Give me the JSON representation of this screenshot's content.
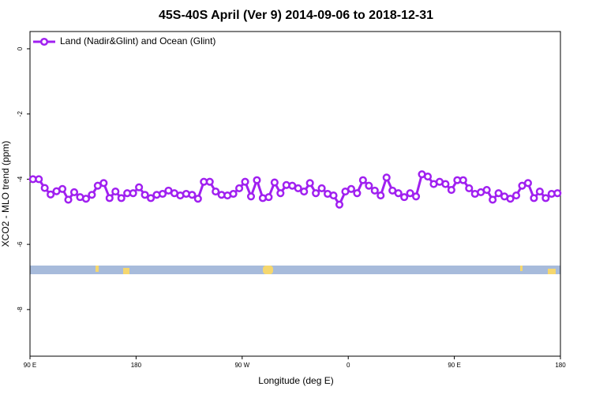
{
  "chart_data": {
    "type": "line",
    "title": "45S-40S April (Ver 9)   2014-09-06 to 2018-12-31",
    "xlabel": "Longitude (deg E)",
    "ylabel": "XCO2 - MLO trend (ppm)",
    "x": [
      92.5,
      97.5,
      102.5,
      107.5,
      112.5,
      117.5,
      122.5,
      127.5,
      132.5,
      137.5,
      142.5,
      147.5,
      152.5,
      157.5,
      162.5,
      167.5,
      172.5,
      177.5,
      182.5,
      187.5,
      192.5,
      197.5,
      202.5,
      207.5,
      212.5,
      217.5,
      222.5,
      227.5,
      232.5,
      237.5,
      242.5,
      247.5,
      252.5,
      257.5,
      262.5,
      267.5,
      272.5,
      277.5,
      282.5,
      287.5,
      292.5,
      297.5,
      302.5,
      307.5,
      312.5,
      317.5,
      322.5,
      327.5,
      332.5,
      337.5,
      342.5,
      347.5,
      352.5,
      357.5,
      362.5,
      367.5,
      372.5,
      377.5,
      382.5,
      387.5,
      392.5,
      397.5,
      402.5,
      407.5,
      412.5,
      417.5,
      422.5,
      427.5,
      432.5,
      437.5,
      442.5,
      447.5,
      452.5,
      457.5,
      462.5,
      467.5,
      472.5,
      477.5,
      482.5,
      487.5,
      492.5,
      497.5,
      502.5,
      507.5,
      512.5,
      517.5,
      522.5,
      527.5,
      532.5,
      537.5
    ],
    "series": [
      {
        "name": "Land (Nadir&Glint) and Ocean (Glint)",
        "color": "#a020f0",
        "values": [
          -4.0,
          -4.0,
          -4.27,
          -4.47,
          -4.37,
          -4.3,
          -4.63,
          -4.4,
          -4.55,
          -4.6,
          -4.48,
          -4.2,
          -4.12,
          -4.58,
          -4.38,
          -4.58,
          -4.43,
          -4.43,
          -4.25,
          -4.48,
          -4.58,
          -4.48,
          -4.45,
          -4.35,
          -4.43,
          -4.5,
          -4.45,
          -4.48,
          -4.6,
          -4.08,
          -4.08,
          -4.38,
          -4.48,
          -4.5,
          -4.45,
          -4.28,
          -4.08,
          -4.53,
          -4.03,
          -4.58,
          -4.55,
          -4.1,
          -4.43,
          -4.18,
          -4.2,
          -4.28,
          -4.38,
          -4.12,
          -4.43,
          -4.28,
          -4.45,
          -4.5,
          -4.78,
          -4.38,
          -4.3,
          -4.43,
          -4.03,
          -4.2,
          -4.35,
          -4.5,
          -3.95,
          -4.35,
          -4.43,
          -4.55,
          -4.43,
          -4.53,
          -3.85,
          -3.92,
          -4.15,
          -4.08,
          -4.15,
          -4.33,
          -4.03,
          -4.03,
          -4.28,
          -4.45,
          -4.4,
          -4.33,
          -4.63,
          -4.43,
          -4.53,
          -4.6,
          -4.5,
          -4.2,
          -4.12,
          -4.58,
          -4.38,
          -4.58,
          -4.45,
          -4.43
        ]
      }
    ],
    "xlim": [
      90,
      540
    ],
    "xticks": [
      {
        "value": 90,
        "label": "90 E"
      },
      180,
      {
        "value": 270,
        "label": "90 W"
      },
      {
        "value": 360,
        "label": "0"
      },
      {
        "value": 450,
        "label": "90 E"
      },
      {
        "value": 540,
        "label": "180"
      }
    ],
    "ylim": [
      -9.43,
      0.53
    ],
    "yticks": [
      0,
      -2,
      -4,
      -6,
      -8
    ],
    "legend": "upper left"
  }
}
